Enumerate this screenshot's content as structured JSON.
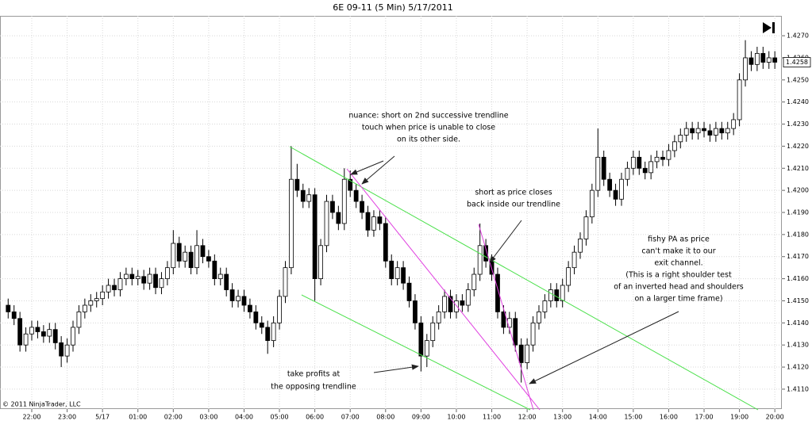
{
  "chart_data": {
    "type": "candlestick",
    "title": "6E 09-11 (5 Min)  5/17/2011",
    "copyright": "© 2011 NinjaTrader, LLC",
    "categories": [
      null,
      null,
      null,
      null,
      "22:00",
      null,
      null,
      null,
      null,
      null,
      "23:00",
      null,
      null,
      null,
      null,
      null,
      "5/17",
      null,
      null,
      null,
      null,
      null,
      "01:00",
      null,
      null,
      null,
      null,
      null,
      "02:00",
      null,
      null,
      null,
      null,
      null,
      "03:00",
      null,
      null,
      null,
      null,
      null,
      "04:00",
      null,
      null,
      null,
      null,
      null,
      "05:00",
      null,
      null,
      null,
      null,
      null,
      "06:00",
      null,
      null,
      null,
      null,
      null,
      "07:00",
      null,
      null,
      null,
      null,
      null,
      "08:00",
      null,
      null,
      null,
      null,
      null,
      "09:00",
      null,
      null,
      null,
      null,
      null,
      "10:00",
      null,
      null,
      null,
      null,
      null,
      "11:00",
      null,
      null,
      null,
      null,
      null,
      "12:00",
      null,
      null,
      null,
      null,
      null,
      "13:00",
      null,
      null,
      null,
      null,
      null,
      "14:00",
      null,
      null,
      null,
      null,
      null,
      "15:00",
      null,
      null,
      null,
      null,
      null,
      "16:00",
      null,
      null,
      null,
      null,
      null,
      "17:00",
      null,
      null,
      null,
      null,
      null,
      "19:00",
      null,
      null,
      null,
      null,
      null,
      "20:00"
    ],
    "open": [
      1.4148,
      1.4145,
      1.4142,
      1.413,
      1.4135,
      1.4138,
      1.4136,
      1.4134,
      1.4137,
      1.4131,
      1.4125,
      1.413,
      1.4138,
      1.4145,
      1.4148,
      1.415,
      1.4151,
      1.4154,
      1.4157,
      1.4155,
      1.416,
      1.4162,
      1.416,
      1.4161,
      1.4158,
      1.4162,
      1.4156,
      1.416,
      1.4165,
      1.4176,
      1.4168,
      1.4172,
      1.4165,
      1.4175,
      1.417,
      1.4168,
      1.416,
      1.4162,
      1.4155,
      1.415,
      1.4152,
      1.4148,
      1.4145,
      1.414,
      1.4138,
      1.4132,
      1.414,
      1.4152,
      1.4165,
      1.4205,
      1.42,
      1.4195,
      1.4198,
      1.416,
      1.4175,
      1.4195,
      1.419,
      1.4185,
      1.4205,
      1.42,
      1.4195,
      1.419,
      1.4182,
      1.4188,
      1.4185,
      1.4168,
      1.416,
      1.4165,
      1.4158,
      1.415,
      1.414,
      1.4125,
      1.4132,
      1.414,
      1.4145,
      1.4152,
      1.4145,
      1.415,
      1.4148,
      1.4155,
      1.4162,
      1.4175,
      1.4168,
      1.4162,
      1.4145,
      1.4138,
      1.4142,
      1.413,
      1.4122,
      1.413,
      1.414,
      1.4145,
      1.415,
      1.4155,
      1.415,
      1.4157,
      1.4165,
      1.4172,
      1.4178,
      1.4188,
      1.42,
      1.4215,
      1.4205,
      1.42,
      1.4196,
      1.4205,
      1.421,
      1.4215,
      1.421,
      1.4208,
      1.4213,
      1.4215,
      1.4214,
      1.4218,
      1.4222,
      1.4225,
      1.4228,
      1.4226,
      1.4228,
      1.4227,
      1.4225,
      1.4228,
      1.4226,
      1.4228,
      1.4232,
      1.425,
      1.426,
      1.4257,
      1.4262,
      1.4258,
      1.426
    ],
    "high": [
      1.4151,
      1.4148,
      1.4145,
      1.4138,
      1.4141,
      1.4141,
      1.4139,
      1.414,
      1.414,
      1.4134,
      1.4133,
      1.4141,
      1.4148,
      1.4151,
      1.4153,
      1.4154,
      1.4157,
      1.416,
      1.416,
      1.4163,
      1.4165,
      1.4165,
      1.4164,
      1.4164,
      1.4165,
      1.4165,
      1.4163,
      1.4168,
      1.4182,
      1.4179,
      1.4175,
      1.4175,
      1.4182,
      1.4178,
      1.4173,
      1.4171,
      1.4165,
      1.4165,
      1.4158,
      1.4155,
      1.4155,
      1.4151,
      1.4148,
      1.4143,
      1.4141,
      1.4143,
      1.4155,
      1.4168,
      1.422,
      1.4212,
      1.4203,
      1.4201,
      1.4201,
      1.4178,
      1.4198,
      1.4198,
      1.4193,
      1.421,
      1.4209,
      1.4203,
      1.4198,
      1.4193,
      1.4191,
      1.4191,
      1.4188,
      1.4171,
      1.4168,
      1.4168,
      1.4161,
      1.4153,
      1.4143,
      1.4135,
      1.4143,
      1.4148,
      1.4155,
      1.4155,
      1.4153,
      1.4153,
      1.4158,
      1.4165,
      1.4185,
      1.4178,
      1.4171,
      1.4165,
      1.4148,
      1.4145,
      1.4145,
      1.4133,
      1.4133,
      1.4143,
      1.4148,
      1.4153,
      1.4158,
      1.4158,
      1.416,
      1.4168,
      1.4175,
      1.4181,
      1.4191,
      1.4203,
      1.4228,
      1.4218,
      1.4208,
      1.4203,
      1.4208,
      1.4213,
      1.4218,
      1.4218,
      1.4213,
      1.4216,
      1.4218,
      1.4218,
      1.4221,
      1.4225,
      1.4228,
      1.4231,
      1.4231,
      1.4231,
      1.4231,
      1.423,
      1.4231,
      1.4231,
      1.4231,
      1.4235,
      1.4253,
      1.4268,
      1.4263,
      1.4265,
      1.4265,
      1.4263,
      1.4263
    ],
    "low": [
      1.4142,
      1.4139,
      1.4127,
      1.4127,
      1.4132,
      1.4133,
      1.4131,
      1.4131,
      1.4128,
      1.412,
      1.4122,
      1.4127,
      1.4135,
      1.4142,
      1.4145,
      1.4147,
      1.4148,
      1.4151,
      1.4152,
      1.4152,
      1.4157,
      1.4157,
      1.4157,
      1.4155,
      1.4155,
      1.4153,
      1.4153,
      1.4157,
      1.4162,
      1.4165,
      1.4165,
      1.4162,
      1.4162,
      1.4167,
      1.4165,
      1.4157,
      1.4157,
      1.4152,
      1.4147,
      1.4147,
      1.4145,
      1.4142,
      1.4137,
      1.4135,
      1.4126,
      1.4129,
      1.4137,
      1.4149,
      1.4162,
      1.4197,
      1.4192,
      1.4192,
      1.415,
      1.4157,
      1.4172,
      1.4187,
      1.4182,
      1.4182,
      1.4197,
      1.4192,
      1.4187,
      1.4179,
      1.4179,
      1.4182,
      1.4165,
      1.4157,
      1.4157,
      1.4155,
      1.4147,
      1.4137,
      1.4118,
      1.412,
      1.4129,
      1.4137,
      1.4142,
      1.4142,
      1.4142,
      1.4145,
      1.4145,
      1.4152,
      1.4159,
      1.4165,
      1.4159,
      1.4142,
      1.4135,
      1.4135,
      1.4127,
      1.4113,
      1.4119,
      1.4127,
      1.4137,
      1.4142,
      1.4147,
      1.4147,
      1.4147,
      1.4154,
      1.4162,
      1.4169,
      1.4175,
      1.4185,
      1.4197,
      1.4202,
      1.4197,
      1.4193,
      1.4193,
      1.4202,
      1.4207,
      1.4207,
      1.4205,
      1.4205,
      1.421,
      1.4211,
      1.4211,
      1.4215,
      1.4219,
      1.4222,
      1.4223,
      1.4223,
      1.4224,
      1.4222,
      1.4222,
      1.4223,
      1.4223,
      1.4225,
      1.4229,
      1.4247,
      1.4254,
      1.4254,
      1.4255,
      1.4255,
      1.4255
    ],
    "close": [
      1.4145,
      1.4142,
      1.413,
      1.4135,
      1.4138,
      1.4136,
      1.4134,
      1.4137,
      1.4131,
      1.4125,
      1.413,
      1.4138,
      1.4145,
      1.4148,
      1.415,
      1.4151,
      1.4154,
      1.4157,
      1.4155,
      1.416,
      1.4162,
      1.416,
      1.4161,
      1.4158,
      1.4162,
      1.4156,
      1.416,
      1.4165,
      1.4176,
      1.4168,
      1.4172,
      1.4165,
      1.4175,
      1.417,
      1.4168,
      1.416,
      1.4162,
      1.4155,
      1.415,
      1.4152,
      1.4148,
      1.4145,
      1.414,
      1.4138,
      1.4132,
      1.414,
      1.4152,
      1.4165,
      1.4205,
      1.42,
      1.4195,
      1.4198,
      1.416,
      1.4175,
      1.4195,
      1.419,
      1.4185,
      1.4205,
      1.42,
      1.4195,
      1.419,
      1.4182,
      1.4188,
      1.4185,
      1.4168,
      1.416,
      1.4165,
      1.4158,
      1.415,
      1.414,
      1.4125,
      1.4132,
      1.414,
      1.4145,
      1.4152,
      1.4145,
      1.415,
      1.4148,
      1.4155,
      1.4162,
      1.4175,
      1.4168,
      1.4162,
      1.4145,
      1.4138,
      1.4142,
      1.413,
      1.4122,
      1.413,
      1.414,
      1.4145,
      1.415,
      1.4155,
      1.415,
      1.4157,
      1.4165,
      1.4172,
      1.4178,
      1.4188,
      1.42,
      1.4215,
      1.4205,
      1.42,
      1.4196,
      1.4205,
      1.421,
      1.4215,
      1.421,
      1.4208,
      1.4213,
      1.4215,
      1.4214,
      1.4218,
      1.4222,
      1.4225,
      1.4228,
      1.4226,
      1.4228,
      1.4227,
      1.4225,
      1.4228,
      1.4226,
      1.4228,
      1.4232,
      1.425,
      1.426,
      1.4257,
      1.4262,
      1.4258,
      1.426,
      1.4258
    ],
    "ylim": [
      1.4101,
      1.4279
    ],
    "yticks": [
      {
        "value": 1.411,
        "label": "1.4110"
      },
      {
        "value": 1.412,
        "label": "1.4120"
      },
      {
        "value": 1.413,
        "label": "1.4130"
      },
      {
        "value": 1.414,
        "label": "1.4140"
      },
      {
        "value": 1.415,
        "label": "1.4150"
      },
      {
        "value": 1.416,
        "label": "1.4160"
      },
      {
        "value": 1.417,
        "label": "1.4170"
      },
      {
        "value": 1.418,
        "label": "1.4180"
      },
      {
        "value": 1.419,
        "label": "1.4190"
      },
      {
        "value": 1.42,
        "label": "1.4200"
      },
      {
        "value": 1.421,
        "label": "1.4210"
      },
      {
        "value": 1.422,
        "label": "1.4220"
      },
      {
        "value": 1.423,
        "label": "1.4230"
      },
      {
        "value": 1.424,
        "label": "1.4240"
      },
      {
        "value": 1.425,
        "label": "1.4250"
      },
      {
        "value": 1.426,
        "label": "1.4260"
      },
      {
        "value": 1.427,
        "label": "1.4270"
      }
    ],
    "grid": true,
    "up_color": "#ffffff",
    "down_color": "#000000",
    "annotations": [
      {
        "lines": [
          "nuance: short on 2nd successive trendline",
          "touch when price is unable to close",
          "on its other side."
        ]
      },
      {
        "lines": [
          "short as price closes",
          "back inside our trendline"
        ]
      },
      {
        "lines": [
          "fishy PA as price",
          "can't make it to our",
          "exit channel.",
          "(This is a right shoulder test",
          "of an inverted head and shoulders",
          "on a larger time frame)"
        ]
      },
      {
        "lines": [
          "take profits at",
          "the opposing trendline"
        ]
      }
    ]
  }
}
